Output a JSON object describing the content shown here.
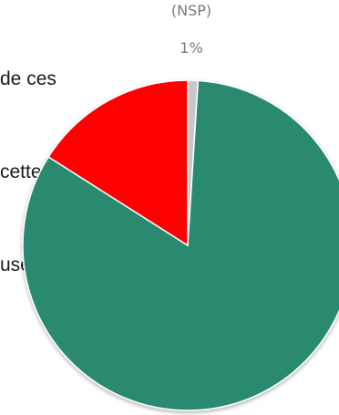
{
  "question_lines": [
    "de ces",
    "cette",
    "use"
  ],
  "chart_data": {
    "type": "pie",
    "slices": [
      {
        "label": "(NSP)",
        "value": 1,
        "display": "1%",
        "color": "#c8c8c8"
      },
      {
        "value": 83,
        "color": "#2a8a70"
      },
      {
        "value": 16,
        "color": "#ff0000"
      }
    ],
    "start": "12 o'clock",
    "direction": "clockwise",
    "legend": "none"
  }
}
